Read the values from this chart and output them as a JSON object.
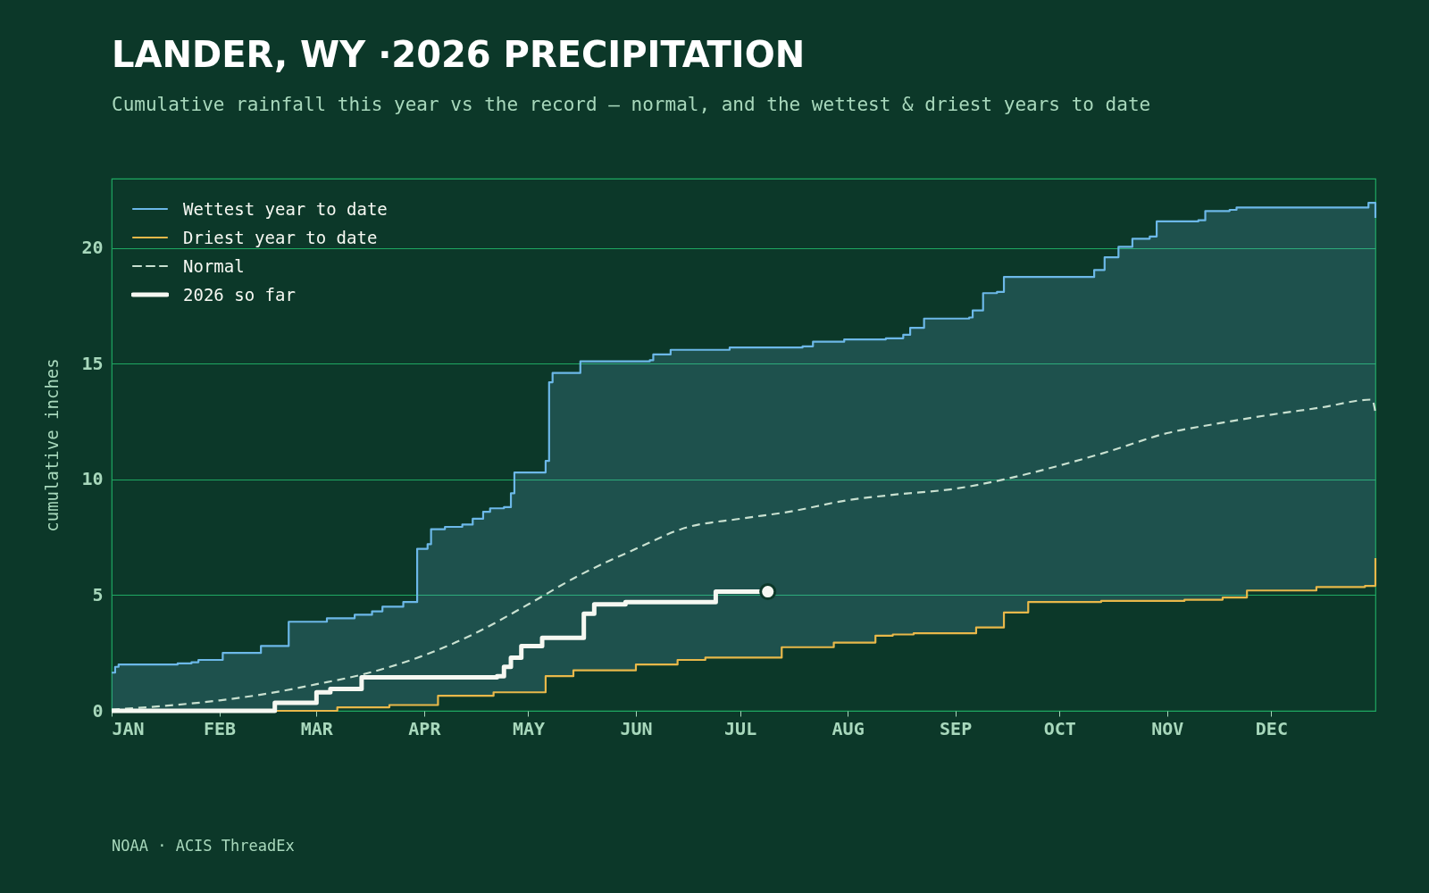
{
  "chart_data": {
    "type": "step",
    "title": "LANDER, WY ·2026 PRECIPITATION",
    "subtitle": "Cumulative rainfall this year vs the record — normal, and the wettest & driest years to date",
    "ylabel": "cumulative inches",
    "annotations": [
      "NOAA · ACIS ThreadEx"
    ],
    "x": [
      "--01-01",
      "--01-02",
      "--01-03",
      "--01-20",
      "--01-24",
      "--01-26",
      "--02-02",
      "--02-13",
      "--02-21",
      "--03-04",
      "--03-07",
      "--03-12",
      "--03-17",
      "--03-20",
      "--03-22",
      "--03-26",
      "--03-30",
      "--04-02",
      "--04-03",
      "--04-05",
      "--04-07",
      "--04-12",
      "--04-15",
      "--04-18",
      "--04-20",
      "--04-21",
      "--04-24",
      "--04-26",
      "--04-27",
      "--05-06",
      "--05-07",
      "--05-08",
      "--05-14",
      "--05-16",
      "--06-01",
      "--06-05",
      "--06-06",
      "--06-11",
      "--06-13",
      "--06-21",
      "--06-28",
      "--07-13",
      "--07-19",
      "--07-22",
      "--07-28",
      "--07-31",
      "--08-09",
      "--08-12",
      "--08-14",
      "--08-17",
      "--08-19",
      "--08-20",
      "--08-23",
      "--09-05",
      "--09-06",
      "--09-07",
      "--09-09",
      "--09-13",
      "--09-15",
      "--09-22",
      "--10-11",
      "--10-13",
      "--10-14",
      "--10-18",
      "--10-22",
      "--10-27",
      "--10-29",
      "--11-06",
      "--11-10",
      "--11-12",
      "--11-17",
      "--11-19",
      "--11-21",
      "--11-24",
      "--12-14",
      "--12-28",
      "--12-29",
      "--12-31"
    ],
    "series": [
      {
        "name": "Wettest year to date",
        "color": "#6cb8e8",
        "lower": [
          0,
          0,
          0,
          0,
          0,
          0,
          0,
          0,
          0,
          0,
          0.15,
          0.15,
          0.15,
          0.15,
          0.25,
          0.25,
          0.25,
          0.25,
          0.25,
          0.65,
          0.65,
          0.65,
          0.65,
          0.65,
          0.65,
          0.8,
          0.8,
          0.8,
          0.8,
          1.5,
          1.5,
          1.5,
          1.75,
          1.75,
          2.0,
          2.0,
          2.0,
          2.0,
          2.2,
          2.3,
          2.3,
          2.75,
          2.75,
          2.75,
          2.95,
          2.95,
          3.25,
          3.25,
          3.3,
          3.3,
          3.3,
          3.35,
          3.35,
          3.35,
          3.35,
          3.6,
          3.6,
          3.6,
          4.25,
          4.7,
          4.7,
          4.75,
          4.75,
          4.75,
          4.75,
          4.75,
          4.75,
          4.8,
          4.8,
          4.8,
          4.9,
          4.9,
          4.9,
          5.2,
          5.35,
          5.4,
          5.4,
          6.6
        ],
        "upper": [
          1.65,
          1.9,
          2.0,
          2.05,
          2.1,
          2.2,
          2.5,
          2.8,
          3.85,
          4.0,
          4.0,
          4.15,
          4.3,
          4.5,
          4.5,
          4.7,
          7.0,
          7.2,
          7.85,
          7.85,
          7.95,
          8.05,
          8.3,
          8.6,
          8.75,
          8.75,
          8.8,
          9.4,
          10.3,
          10.8,
          14.2,
          14.6,
          14.6,
          15.1,
          15.1,
          15.15,
          15.4,
          15.6,
          15.6,
          15.6,
          15.7,
          15.7,
          15.75,
          15.95,
          15.95,
          16.05,
          16.05,
          16.1,
          16.1,
          16.25,
          16.55,
          16.55,
          16.95,
          17.0,
          17.3,
          17.3,
          18.05,
          18.1,
          18.75,
          18.75,
          19.05,
          19.05,
          19.6,
          20.05,
          20.4,
          20.5,
          21.15,
          21.15,
          21.2,
          21.6,
          21.6,
          21.65,
          21.75,
          21.75,
          21.75,
          21.75,
          21.95,
          21.3
        ],
        "values": [
          1.65,
          1.9,
          2.0,
          2.05,
          2.1,
          2.2,
          2.5,
          2.8,
          3.85,
          4.0,
          4.0,
          4.15,
          4.3,
          4.5,
          4.5,
          4.7,
          7.0,
          7.2,
          7.85,
          7.85,
          7.95,
          8.05,
          8.3,
          8.6,
          8.75,
          8.75,
          8.8,
          9.4,
          10.3,
          10.8,
          14.2,
          14.6,
          14.6,
          15.1,
          15.1,
          15.15,
          15.4,
          15.6,
          15.6,
          15.6,
          15.7,
          15.7,
          15.75,
          15.95,
          15.95,
          16.05,
          16.05,
          16.1,
          16.1,
          16.25,
          16.55,
          16.55,
          16.95,
          17.0,
          17.3,
          17.3,
          18.05,
          18.1,
          18.75,
          18.75,
          19.05,
          19.05,
          19.6,
          20.05,
          20.4,
          20.5,
          21.15,
          21.15,
          21.2,
          21.6,
          21.6,
          21.65,
          21.75,
          21.75,
          21.75,
          21.75,
          21.95,
          21.3
        ]
      },
      {
        "name": "Driest year to date",
        "color": "#e8b84a",
        "values": [
          null,
          null,
          null,
          null,
          null,
          null,
          null,
          0,
          0,
          0,
          0.15,
          0.15,
          0.15,
          0.15,
          0.25,
          0.25,
          0.25,
          0.25,
          0.25,
          0.65,
          0.65,
          0.65,
          0.65,
          0.65,
          0.65,
          0.8,
          0.8,
          0.8,
          0.8,
          1.5,
          1.5,
          1.5,
          1.75,
          1.75,
          2.0,
          2.0,
          2.0,
          2.0,
          2.2,
          2.3,
          2.3,
          2.75,
          2.75,
          2.75,
          2.95,
          2.95,
          3.25,
          3.25,
          3.3,
          3.3,
          3.3,
          3.35,
          3.35,
          3.35,
          3.35,
          3.6,
          3.6,
          3.6,
          4.25,
          4.7,
          4.7,
          4.75,
          4.75,
          4.75,
          4.75,
          4.75,
          4.75,
          4.8,
          4.8,
          4.8,
          4.9,
          4.9,
          4.9,
          5.2,
          5.35,
          5.4,
          5.4,
          6.6
        ]
      },
      {
        "name": "Normal",
        "type": "line",
        "color": "#c8e0d0",
        "line_style": "dashed",
        "x": [
          "--01-01",
          "--01-15",
          "--02-01",
          "--02-15",
          "--03-01",
          "--03-15",
          "--04-01",
          "--04-15",
          "--05-01",
          "--05-15",
          "--06-01",
          "--06-15",
          "--07-01",
          "--07-15",
          "--08-01",
          "--08-15",
          "--09-01",
          "--09-15",
          "--10-01",
          "--10-15",
          "--11-01",
          "--11-15",
          "--12-01",
          "--12-15",
          "--12-30",
          "--12-31"
        ],
        "values": [
          0.05,
          0.2,
          0.45,
          0.75,
          1.15,
          1.6,
          2.4,
          3.3,
          4.6,
          5.8,
          7.0,
          7.9,
          8.3,
          8.6,
          9.1,
          9.35,
          9.6,
          10.0,
          10.6,
          11.2,
          12.0,
          12.4,
          12.8,
          13.1,
          13.45,
          12.9
        ]
      },
      {
        "name": "2026 so far",
        "color": "#f6f8f2",
        "x": [
          "--01-01",
          "--02-17",
          "--03-01",
          "--03-05",
          "--03-14",
          "--04-22",
          "--04-24",
          "--04-26",
          "--04-29",
          "--05-05",
          "--05-17",
          "--05-20",
          "--05-29",
          "--06-24",
          "--07-09"
        ],
        "values": [
          0,
          0.35,
          0.8,
          0.95,
          1.45,
          1.5,
          1.9,
          2.3,
          2.8,
          3.15,
          4.2,
          4.6,
          4.7,
          5.15,
          5.15
        ]
      },
      {
        "type": "scatter",
        "marker": "circle",
        "color": "#f6f8f2",
        "x": [
          "--07-09"
        ],
        "values": [
          5.15
        ]
      }
    ],
    "xlim": [
      "--01-01",
      "--12-31"
    ],
    "xticks": [
      {
        "value": "--01-01",
        "label": "JAN"
      },
      {
        "value": "--02-01",
        "label": "FEB"
      },
      {
        "value": "--03-01",
        "label": "MAR"
      },
      {
        "value": "--04-01",
        "label": "APR"
      },
      {
        "value": "--05-01",
        "label": "MAY"
      },
      {
        "value": "--06-01",
        "label": "JUN"
      },
      {
        "value": "--07-01",
        "label": "JUL"
      },
      {
        "value": "--08-01",
        "label": "AUG"
      },
      {
        "value": "--09-01",
        "label": "SEP"
      },
      {
        "value": "--10-01",
        "label": "OCT"
      },
      {
        "value": "--11-01",
        "label": "NOV"
      },
      {
        "value": "--12-01",
        "label": "DEC"
      }
    ],
    "ylim": [
      0,
      23
    ],
    "yticks": [
      0,
      5,
      10,
      15,
      20
    ],
    "grid": "y",
    "legend": "top left"
  }
}
